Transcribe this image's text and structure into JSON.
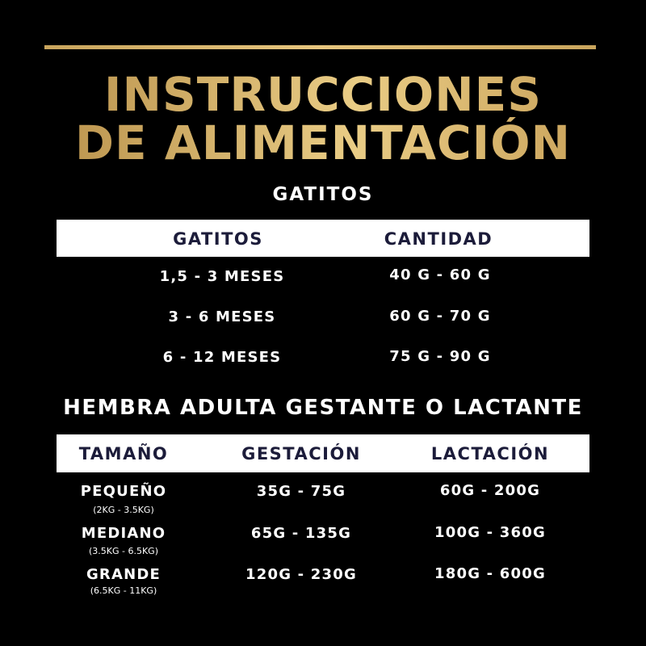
{
  "title": {
    "line1": "INSTRUCCIONES",
    "line2": "DE ALIMENTACIÓN"
  },
  "colors": {
    "gold": "#d4b168",
    "header_text": "#1c1c3a",
    "background": "#000000"
  },
  "kittens": {
    "section_title": "GATITOS",
    "headers": [
      "GATITOS",
      "CANTIDAD"
    ],
    "rows": [
      {
        "age": "1,5 - 3 MESES",
        "amount": "40 G - 60 G"
      },
      {
        "age": "3 - 6 MESES",
        "amount": "60 G - 70 G"
      },
      {
        "age": "6 - 12 MESES",
        "amount": "75 G - 90 G"
      }
    ]
  },
  "female": {
    "section_title": "HEMBRA ADULTA GESTANTE O LACTANTE",
    "headers": [
      "TAMAÑO",
      "GESTACIÓN",
      "LACTACIÓN"
    ],
    "rows": [
      {
        "size": "PEQUEÑO",
        "range": "(2KG - 3.5KG)",
        "gestation": "35G - 75G",
        "lactation": "60G - 200G"
      },
      {
        "size": "MEDIANO",
        "range": "(3.5KG - 6.5KG)",
        "gestation": "65G - 135G",
        "lactation": "100G - 360G"
      },
      {
        "size": "GRANDE",
        "range": "(6.5KG - 11KG)",
        "gestation": "120G - 230G",
        "lactation": "180G - 600G"
      }
    ]
  }
}
